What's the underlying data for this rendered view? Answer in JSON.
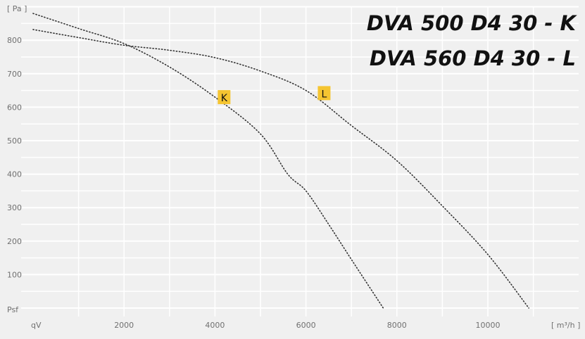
{
  "chart_data": {
    "type": "line",
    "title_lines": [
      "DVA 500 D4 30 - K",
      "DVA 560 D4 30 - L"
    ],
    "xlabel_unit": "[ m³/h ]",
    "xlabel_symbol": "qV",
    "ylabel_unit": "[ Pa ]",
    "ylabel_symbol": "Psf",
    "xlim": [
      0,
      12000
    ],
    "ylim": [
      0,
      900
    ],
    "x_ticks": [
      2000,
      4000,
      6000,
      8000,
      10000
    ],
    "y_ticks": [
      100,
      200,
      300,
      400,
      500,
      600,
      700,
      800
    ],
    "grid": true,
    "background": "#f0f0f0",
    "series": [
      {
        "name": "K",
        "label_at": [
          4200,
          630
        ],
        "label_color": "#f5c531",
        "x": [
          0,
          1000,
          2000,
          3000,
          4000,
          5000,
          5600,
          6000,
          6500,
          7000,
          7700
        ],
        "y": [
          880,
          835,
          790,
          720,
          630,
          520,
          400,
          350,
          250,
          145,
          0
        ]
      },
      {
        "name": "L",
        "label_at": [
          6400,
          642
        ],
        "label_color": "#f5c531",
        "x": [
          0,
          1000,
          2000,
          3000,
          4000,
          5000,
          6000,
          7000,
          8000,
          9000,
          10000,
          10900
        ],
        "y": [
          832,
          808,
          785,
          770,
          748,
          708,
          650,
          545,
          440,
          305,
          160,
          0
        ]
      }
    ]
  }
}
